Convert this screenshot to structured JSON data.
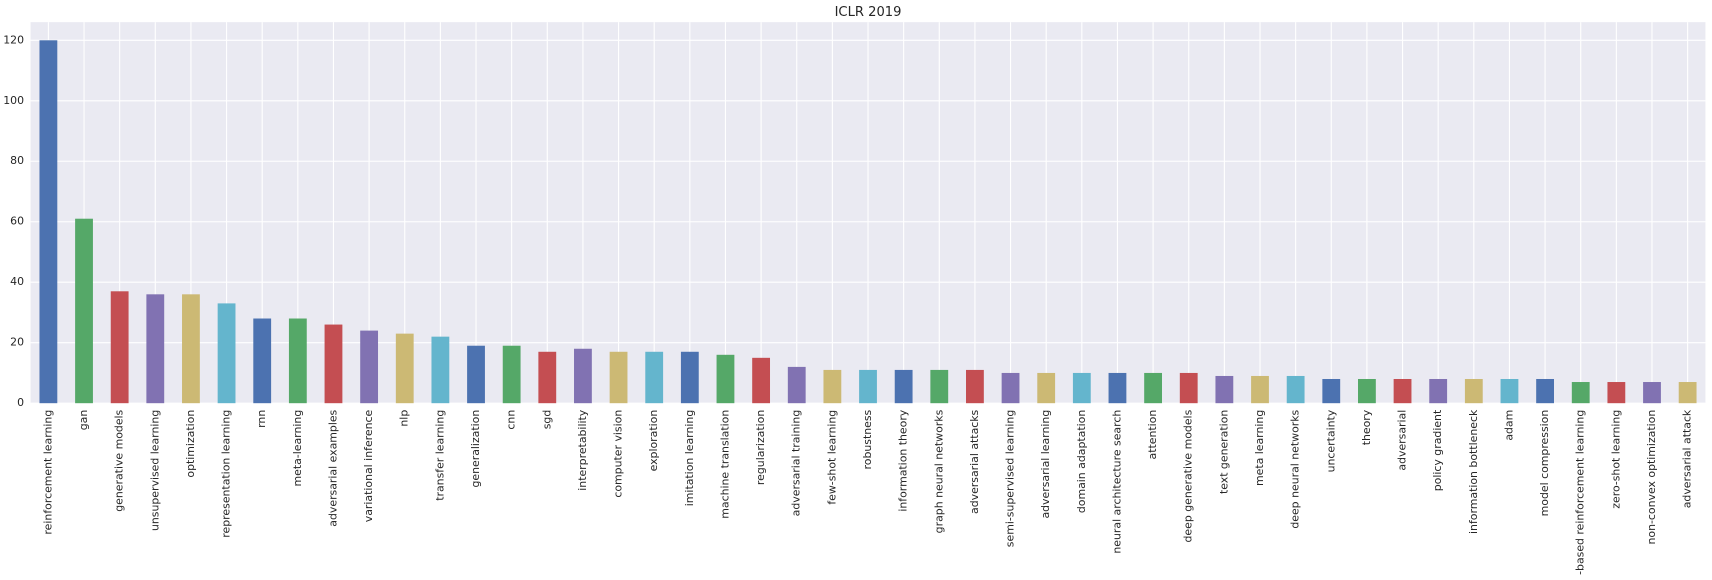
{
  "chart_data": {
    "type": "bar",
    "title": "ICLR 2019",
    "categories": [
      "reinforcement learning",
      "gan",
      "generative models",
      "unsupervised learning",
      "optimization",
      "representation learning",
      "rnn",
      "meta-learning",
      "adversarial examples",
      "variational inference",
      "nlp",
      "transfer learning",
      "generalization",
      "cnn",
      "sgd",
      "interpretability",
      "computer vision",
      "exploration",
      "imitation learning",
      "machine translation",
      "regularization",
      "adversarial training",
      "few-shot learning",
      "robustness",
      "information theory",
      "graph neural networks",
      "adversarial attacks",
      "semi-supervised learning",
      "adversarial learning",
      "domain adaptation",
      "neural architecture search",
      "attention",
      "deep generative models",
      "text generation",
      "meta learning",
      "deep neural networks",
      "uncertainty",
      "theory",
      "adversarial",
      "policy gradient",
      "information bottleneck",
      "adam",
      "model compression",
      "model-based reinforcement learning",
      "zero-shot learning",
      "non-convex optimization",
      "adversarial attack"
    ],
    "values": [
      120,
      61,
      37,
      36,
      36,
      33,
      28,
      28,
      26,
      24,
      23,
      22,
      19,
      19,
      17,
      18,
      17,
      17,
      17,
      16,
      15,
      12,
      11,
      11,
      11,
      11,
      11,
      10,
      10,
      10,
      10,
      10,
      10,
      9,
      9,
      9,
      8,
      8,
      8,
      8,
      8,
      8,
      8,
      7,
      7,
      7,
      7
    ],
    "colors": [
      "#4c72b0",
      "#55a868",
      "#c44e52",
      "#8172b2",
      "#ccb974",
      "#64b5cd"
    ],
    "ylim": [
      0,
      126
    ],
    "yticks": [
      0,
      20,
      40,
      60,
      80,
      100,
      120
    ],
    "grid": true
  }
}
